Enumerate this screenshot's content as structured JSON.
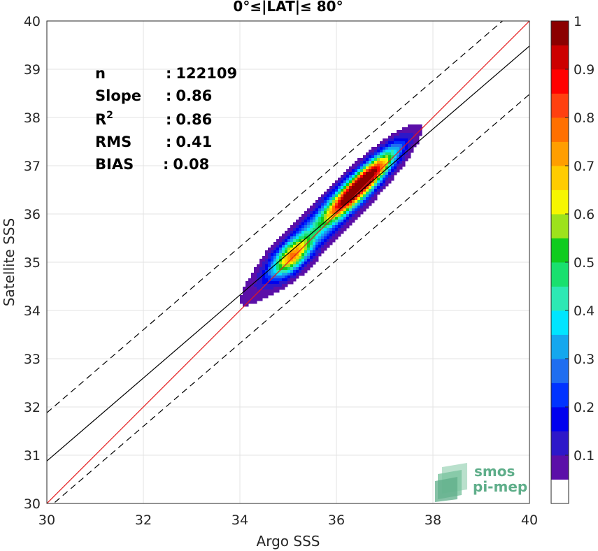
{
  "chart_data": {
    "type": "contour",
    "title": "0°≤|LAT|≤ 80°",
    "xlabel": "Argo SSS",
    "ylabel": "Satellite SSS",
    "xlim": [
      30,
      40
    ],
    "ylim": [
      30,
      40
    ],
    "xticks": [
      "30",
      "32",
      "34",
      "36",
      "38",
      "40"
    ],
    "yticks": [
      "30",
      "31",
      "32",
      "33",
      "34",
      "35",
      "36",
      "37",
      "38",
      "39",
      "40"
    ],
    "grid": true,
    "stats": [
      {
        "label": "n",
        "sep": ":",
        "value": "122109"
      },
      {
        "label": "Slope",
        "sep": ":",
        "value": "0.86"
      },
      {
        "label": "R",
        "sup": "2",
        "sep": ":",
        "value": "0.86"
      },
      {
        "label": "RMS",
        "sep": ":",
        "value": "0.41"
      },
      {
        "label": "BIAS",
        "sep": ":",
        "value": "0.08"
      }
    ],
    "reference_lines": [
      {
        "name": "1:1",
        "color": "#e41a1c",
        "style": "solid",
        "points": [
          [
            30,
            30
          ],
          [
            40,
            40
          ]
        ]
      },
      {
        "name": "regression",
        "color": "#000000",
        "style": "solid",
        "points": [
          [
            30,
            30.88
          ],
          [
            40,
            39.48
          ]
        ]
      },
      {
        "name": "upper-bound",
        "color": "#000000",
        "style": "dashed",
        "points": [
          [
            30,
            31.88
          ],
          [
            40,
            40.48
          ]
        ]
      },
      {
        "name": "lower-bound",
        "color": "#000000",
        "style": "dashed",
        "points": [
          [
            30,
            29.88
          ],
          [
            40,
            38.48
          ]
        ]
      }
    ],
    "density_peak": {
      "x": 36.5,
      "y": 36.6
    },
    "colorbar": {
      "range": [
        0,
        1
      ],
      "ticks": [
        "0.1",
        "0.2",
        "0.3",
        "0.4",
        "0.5",
        "0.6",
        "0.7",
        "0.8",
        "0.9",
        "1"
      ],
      "levels": [
        {
          "from": 0.0,
          "to": 0.05,
          "color": "#ffffff"
        },
        {
          "from": 0.05,
          "to": 0.1,
          "color": "#5b0fa8"
        },
        {
          "from": 0.1,
          "to": 0.15,
          "color": "#2d18c9"
        },
        {
          "from": 0.15,
          "to": 0.2,
          "color": "#0000ee"
        },
        {
          "from": 0.2,
          "to": 0.25,
          "color": "#0033ff"
        },
        {
          "from": 0.25,
          "to": 0.3,
          "color": "#1f6ef0"
        },
        {
          "from": 0.3,
          "to": 0.35,
          "color": "#15a7ee"
        },
        {
          "from": 0.35,
          "to": 0.4,
          "color": "#00e5ff"
        },
        {
          "from": 0.4,
          "to": 0.45,
          "color": "#2de8b4"
        },
        {
          "from": 0.45,
          "to": 0.5,
          "color": "#19e06e"
        },
        {
          "from": 0.5,
          "to": 0.55,
          "color": "#0fcc1e"
        },
        {
          "from": 0.55,
          "to": 0.6,
          "color": "#9de21c"
        },
        {
          "from": 0.6,
          "to": 0.65,
          "color": "#f6f600"
        },
        {
          "from": 0.65,
          "to": 0.7,
          "color": "#ffcc00"
        },
        {
          "from": 0.7,
          "to": 0.75,
          "color": "#ff9e00"
        },
        {
          "from": 0.75,
          "to": 0.8,
          "color": "#ff7000"
        },
        {
          "from": 0.8,
          "to": 0.85,
          "color": "#ff4010"
        },
        {
          "from": 0.85,
          "to": 0.9,
          "color": "#ff0000"
        },
        {
          "from": 0.9,
          "to": 0.95,
          "color": "#cc0000"
        },
        {
          "from": 0.95,
          "to": 1.0,
          "color": "#8b0000"
        }
      ]
    }
  },
  "logo": {
    "line1": "smos",
    "line2": "pi-mep"
  }
}
